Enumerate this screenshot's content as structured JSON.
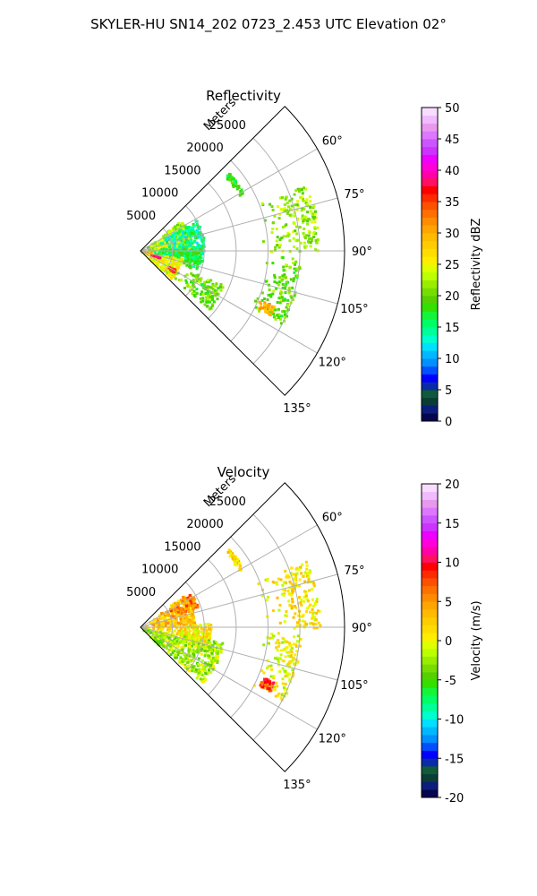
{
  "figure": {
    "suptitle": "SKYLER-HU  SN14_202  0723_2.453 UTC Elevation 02°"
  },
  "chart_data": [
    {
      "type": "polar-sector",
      "title": "Reflectivity",
      "radial_label": "Meters",
      "radial_ticks": [
        5000,
        10000,
        15000,
        20000,
        25000
      ],
      "radial_tick_labels": [
        "5000",
        "10000",
        "15000",
        "20000",
        "25000"
      ],
      "radial_range": [
        0,
        32000
      ],
      "angular_range_deg": [
        45,
        135
      ],
      "angular_ticks_deg": [
        60,
        75,
        90,
        105,
        120,
        135
      ],
      "angular_tick_labels": [
        "60°",
        "75°",
        "90°",
        "105°",
        "120°",
        "135°"
      ],
      "grid": true,
      "colorbar": {
        "label": "Reflectivity dBZ",
        "range": [
          0,
          50
        ],
        "ticks": [
          0,
          5,
          10,
          15,
          20,
          25,
          30,
          35,
          40,
          45,
          50
        ],
        "tick_labels": [
          "0",
          "5",
          "10",
          "15",
          "20",
          "25",
          "30",
          "35",
          "40",
          "45",
          "50"
        ],
        "colors": [
          "#06054f",
          "#0a1e7a",
          "#0b3c35",
          "#0f5a3a",
          "#0a2aa8",
          "#0000ff",
          "#0050ff",
          "#0090ff",
          "#00b8ff",
          "#00e0ff",
          "#00ffd0",
          "#00ff9a",
          "#00ff66",
          "#14f53a",
          "#33e000",
          "#55d000",
          "#77dd00",
          "#99ee00",
          "#bbff00",
          "#ddff00",
          "#ffee00",
          "#ffdd00",
          "#ffcc00",
          "#ffbb00",
          "#ffa500",
          "#ff8c00",
          "#ff7000",
          "#ff5000",
          "#ff2a00",
          "#ff0000",
          "#ff1060",
          "#ff00aa",
          "#ff00dd",
          "#ee00ff",
          "#cc33ff",
          "#cc55ff",
          "#dd77ff",
          "#e899ee",
          "#f0bbff",
          "#f8ddff"
        ]
      },
      "echo_regions": [
        {
          "az_deg": [
            48,
            60
          ],
          "range_m": [
            17500,
            18500
          ],
          "value": 18
        },
        {
          "az_deg": [
            52,
            86
          ],
          "range_m": [
            0,
            8000
          ],
          "value": 22
        },
        {
          "az_deg": [
            72,
            82
          ],
          "range_m": [
            500,
            8000
          ],
          "value": 24
        },
        {
          "az_deg": [
            60,
            100
          ],
          "range_m": [
            3000,
            10000
          ],
          "value": 15
        },
        {
          "az_deg": [
            86,
            108
          ],
          "range_m": [
            0,
            9500
          ],
          "value": 17
        },
        {
          "az_deg": [
            100,
            132
          ],
          "range_m": [
            0,
            6500
          ],
          "value": 25
        },
        {
          "az_deg": [
            112,
            130
          ],
          "range_m": [
            6000,
            14000
          ],
          "value": 20
        },
        {
          "az_deg": [
            88,
            92
          ],
          "range_m": [
            200,
            1500
          ],
          "value": 30
        },
        {
          "az_deg": [
            104,
            108
          ],
          "range_m": [
            1500,
            3000
          ],
          "value": 37
        },
        {
          "az_deg": [
            118,
            122
          ],
          "range_m": [
            4500,
            6000
          ],
          "value": 36
        },
        {
          "az_deg": [
            68,
            90
          ],
          "range_m": [
            19000,
            28000
          ],
          "value": 22
        },
        {
          "az_deg": [
            92,
            117
          ],
          "range_m": [
            19000,
            25000
          ],
          "value": 20
        },
        {
          "az_deg": [
            112,
            116
          ],
          "range_m": [
            20000,
            22500
          ],
          "value": 30
        }
      ]
    },
    {
      "type": "polar-sector",
      "title": "Velocity",
      "radial_label": "Meters",
      "radial_ticks": [
        5000,
        10000,
        15000,
        20000,
        25000
      ],
      "radial_tick_labels": [
        "5000",
        "10000",
        "15000",
        "20000",
        "25000"
      ],
      "radial_range": [
        0,
        32000
      ],
      "angular_range_deg": [
        45,
        135
      ],
      "angular_ticks_deg": [
        60,
        75,
        90,
        105,
        120,
        135
      ],
      "angular_tick_labels": [
        "60°",
        "75°",
        "90°",
        "105°",
        "120°",
        "135°"
      ],
      "grid": true,
      "colorbar": {
        "label": "Velocity (m/s)",
        "range": [
          -20,
          20
        ],
        "ticks": [
          -20,
          -15,
          -10,
          -5,
          0,
          5,
          10,
          15,
          20
        ],
        "tick_labels": [
          "-20",
          "-15",
          "-10",
          "-5",
          "0",
          "5",
          "10",
          "15",
          "20"
        ],
        "colors": [
          "#06054f",
          "#0a1e7a",
          "#0b3c35",
          "#0f5a3a",
          "#0a2aa8",
          "#0000ff",
          "#0050ff",
          "#0090ff",
          "#00b8ff",
          "#00e0ff",
          "#00ffd0",
          "#00ff9a",
          "#00ff66",
          "#14f53a",
          "#33e000",
          "#55d000",
          "#77dd00",
          "#99ee00",
          "#bbff00",
          "#ddff00",
          "#ffee00",
          "#ffdd00",
          "#ffcc00",
          "#ffbb00",
          "#ffa500",
          "#ff8c00",
          "#ff7000",
          "#ff5000",
          "#ff2a00",
          "#ff0000",
          "#ff1060",
          "#ff00aa",
          "#ff00dd",
          "#ee00ff",
          "#cc33ff",
          "#cc55ff",
          "#dd77ff",
          "#e899ee",
          "#f0bbff",
          "#f8ddff"
        ]
      },
      "echo_regions": [
        {
          "az_deg": [
            48,
            60
          ],
          "range_m": [
            17500,
            18500
          ],
          "value": 2
        },
        {
          "az_deg": [
            52,
            86
          ],
          "range_m": [
            0,
            8500
          ],
          "value": 3
        },
        {
          "az_deg": [
            55,
            70
          ],
          "range_m": [
            4000,
            9500
          ],
          "value": 6
        },
        {
          "az_deg": [
            86,
            108
          ],
          "range_m": [
            0,
            11000
          ],
          "value": 1
        },
        {
          "az_deg": [
            100,
            132
          ],
          "range_m": [
            0,
            13000
          ],
          "value": -2
        },
        {
          "az_deg": [
            108,
            134
          ],
          "range_m": [
            0,
            4000
          ],
          "value": -3
        },
        {
          "az_deg": [
            68,
            90
          ],
          "range_m": [
            19000,
            28000
          ],
          "value": 1
        },
        {
          "az_deg": [
            92,
            117
          ],
          "range_m": [
            19000,
            25000
          ],
          "value": 0
        },
        {
          "az_deg": [
            112,
            116
          ],
          "range_m": [
            20000,
            22500
          ],
          "value": 8
        }
      ]
    }
  ]
}
